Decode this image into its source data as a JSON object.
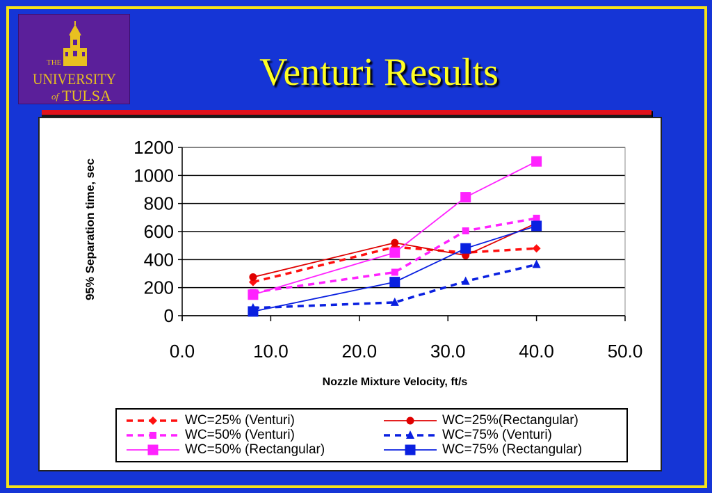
{
  "slide": {
    "title": "Venturi Results",
    "logo": {
      "the": "THE",
      "university": "UNIVERSITY",
      "of": "of",
      "tulsa": "TULSA"
    }
  },
  "colors": {
    "background": "#1535d6",
    "frame": "#f5e21a",
    "title": "#ffff22",
    "rule": "#e0121b",
    "logo_bg": "#5b1f9a",
    "logo_text": "#e8c020"
  },
  "chart_data": {
    "type": "line",
    "xlabel": "Nozzle Mixture Velocity, ft/s",
    "ylabel": "95% Separation time, sec",
    "xlim": [
      0,
      50
    ],
    "ylim": [
      0,
      1200
    ],
    "x_ticks": [
      "0.0",
      "10.0",
      "20.0",
      "30.0",
      "40.0",
      "50.0"
    ],
    "y_ticks": [
      "0",
      "200",
      "400",
      "600",
      "800",
      "1000",
      "1200"
    ],
    "grid": "horizontal",
    "legend_position": "bottom",
    "series": [
      {
        "name": "WC=25% (Venturi)",
        "color": "#ff1010",
        "style": "dashed",
        "marker": "diamond",
        "x": [
          8,
          24,
          32,
          40
        ],
        "y": [
          240,
          490,
          450,
          480
        ]
      },
      {
        "name": "WC=25%(Rectangular)",
        "color": "#e00000",
        "style": "solid",
        "marker": "circle",
        "x": [
          8,
          24,
          32,
          40
        ],
        "y": [
          275,
          520,
          430,
          660
        ]
      },
      {
        "name": "WC=50% (Venturi)",
        "color": "#ff22ff",
        "style": "dashed",
        "marker": "square-small",
        "x": [
          8,
          24,
          32,
          40
        ],
        "y": [
          165,
          310,
          605,
          695
        ]
      },
      {
        "name": "WC=75% (Venturi)",
        "color": "#0a20e0",
        "style": "dashed",
        "marker": "triangle",
        "x": [
          8,
          24,
          32,
          40
        ],
        "y": [
          55,
          95,
          245,
          365
        ]
      },
      {
        "name": "WC=50% (Rectangular)",
        "color": "#ff22ff",
        "style": "solid",
        "marker": "square",
        "x": [
          8,
          24,
          32,
          40
        ],
        "y": [
          150,
          450,
          845,
          1100
        ]
      },
      {
        "name": "WC=75% (Rectangular)",
        "color": "#0a20e0",
        "style": "solid",
        "marker": "square",
        "x": [
          8,
          24,
          32,
          40
        ],
        "y": [
          30,
          240,
          480,
          640
        ]
      }
    ]
  }
}
